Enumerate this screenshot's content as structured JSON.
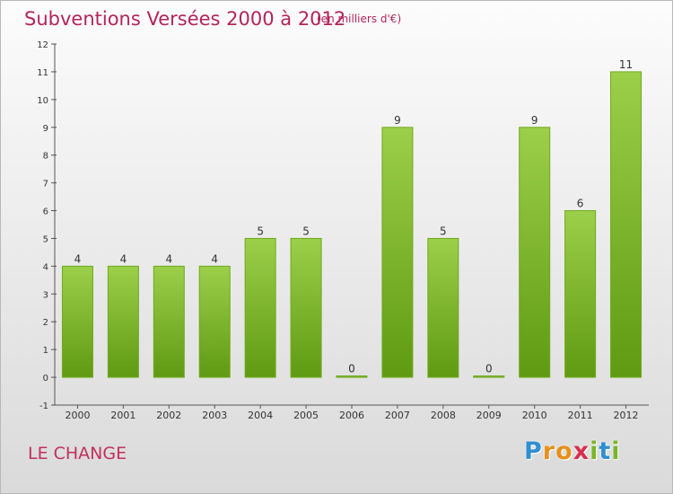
{
  "header": {
    "title": "Subventions Versées 2000 à 2012",
    "subtitle": "(en milliers d'€)"
  },
  "footer": {
    "commune": "LE CHANGE",
    "brand": "Proxiti"
  },
  "colors": {
    "title": "#b3245a",
    "bar_top": "#9ccf4a",
    "bar_bottom": "#5f9a12",
    "bar_stroke": "#6faa1c"
  },
  "chart_data": {
    "type": "bar",
    "categories": [
      "2000",
      "2001",
      "2002",
      "2003",
      "2004",
      "2005",
      "2006",
      "2007",
      "2008",
      "2009",
      "2010",
      "2011",
      "2012"
    ],
    "values": [
      4,
      4,
      4,
      4,
      5,
      5,
      0,
      9,
      5,
      0,
      9,
      6,
      11
    ],
    "title": "Subventions Versées 2000 à 2012",
    "ylim": [
      -1,
      12
    ],
    "yticks": [
      -1,
      0,
      1,
      2,
      3,
      4,
      5,
      6,
      7,
      8,
      9,
      10,
      11,
      12
    ],
    "grid": false,
    "data_labels": true
  }
}
